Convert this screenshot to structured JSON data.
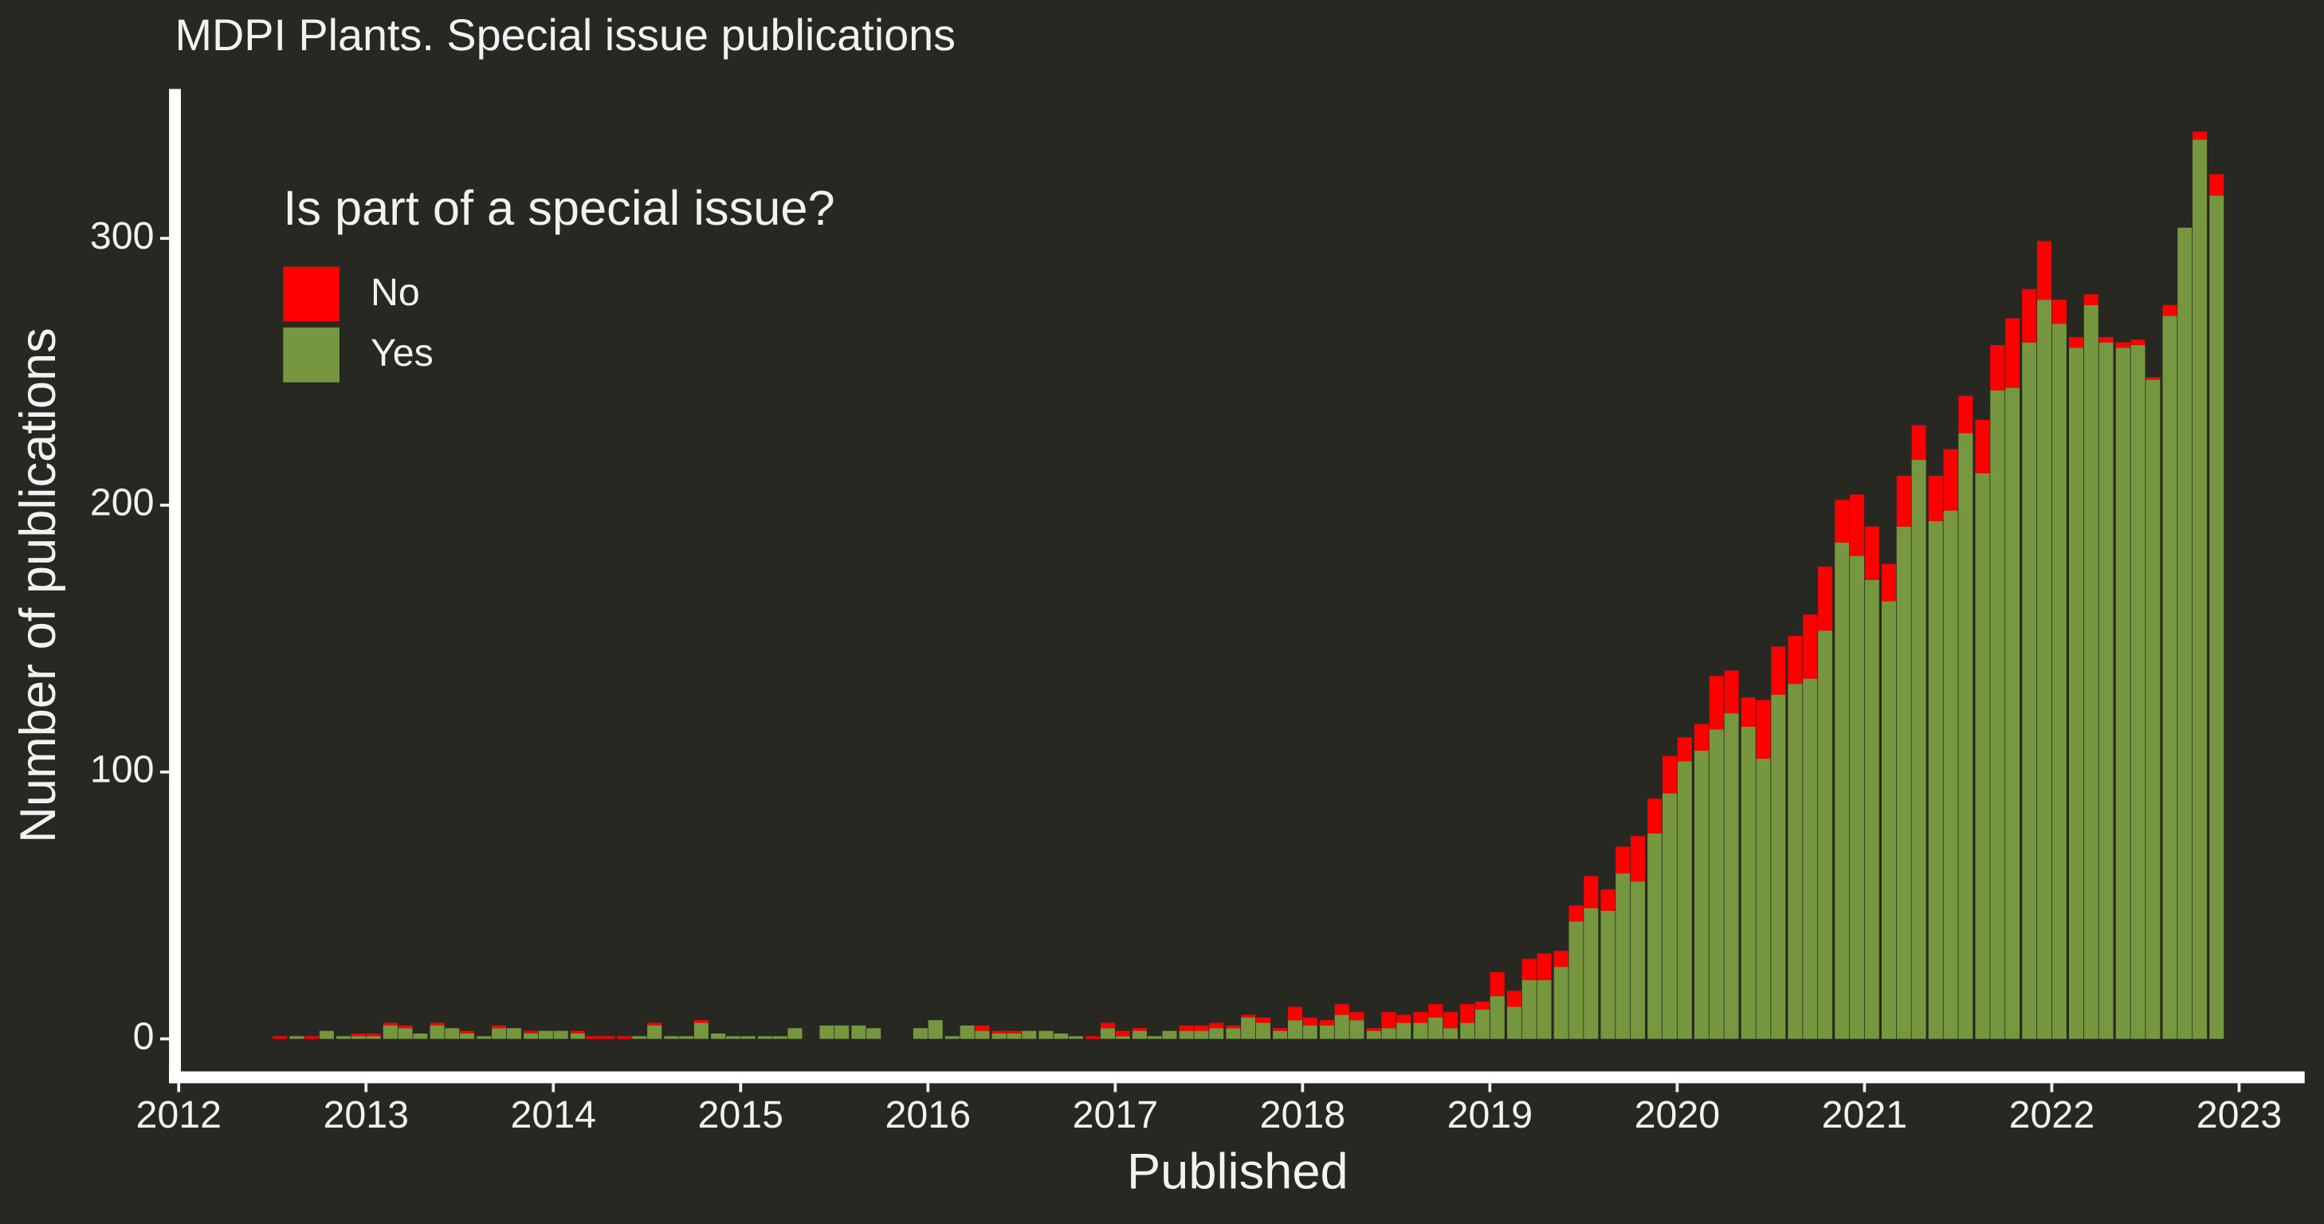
{
  "chart_data": {
    "type": "bar",
    "stacked": true,
    "title": "MDPI Plants. Special issue publications",
    "x_label": "Published",
    "y_label": "Number of publications",
    "legend_title": "Is part of a special issue?",
    "legend": "top-left",
    "x": [
      2012.54,
      2012.63,
      2012.71,
      2012.79,
      2012.88,
      2012.96,
      2013.04,
      2013.13,
      2013.21,
      2013.29,
      2013.38,
      2013.46,
      2013.54,
      2013.63,
      2013.71,
      2013.79,
      2013.88,
      2013.96,
      2014.04,
      2014.13,
      2014.21,
      2014.29,
      2014.38,
      2014.46,
      2014.54,
      2014.63,
      2014.71,
      2014.79,
      2014.88,
      2014.96,
      2015.04,
      2015.13,
      2015.21,
      2015.29,
      2015.38,
      2015.46,
      2015.54,
      2015.63,
      2015.71,
      2015.79,
      2015.88,
      2015.96,
      2016.04,
      2016.13,
      2016.21,
      2016.29,
      2016.38,
      2016.46,
      2016.54,
      2016.63,
      2016.71,
      2016.79,
      2016.88,
      2016.96,
      2017.04,
      2017.13,
      2017.21,
      2017.29,
      2017.38,
      2017.46,
      2017.54,
      2017.63,
      2017.71,
      2017.79,
      2017.88,
      2017.96,
      2018.04,
      2018.13,
      2018.21,
      2018.29,
      2018.38,
      2018.46,
      2018.54,
      2018.63,
      2018.71,
      2018.79,
      2018.88,
      2018.96,
      2019.04,
      2019.13,
      2019.21,
      2019.29,
      2019.38,
      2019.46,
      2019.54,
      2019.63,
      2019.71,
      2019.79,
      2019.88,
      2019.96,
      2020.04,
      2020.13,
      2020.21,
      2020.29,
      2020.38,
      2020.46,
      2020.54,
      2020.63,
      2020.71,
      2020.79,
      2020.88,
      2020.96,
      2021.04,
      2021.13,
      2021.21,
      2021.29,
      2021.38,
      2021.46,
      2021.54,
      2021.63,
      2021.71,
      2021.79,
      2021.88,
      2021.96,
      2022.04,
      2022.13,
      2022.21,
      2022.29,
      2022.38,
      2022.46,
      2022.54,
      2022.63,
      2022.71,
      2022.79,
      2022.88
    ],
    "series": [
      {
        "name": "No",
        "color": "#ff0000",
        "values": [
          1,
          0,
          1,
          0,
          0,
          1,
          1,
          1,
          1,
          0,
          1,
          0,
          1,
          0,
          1,
          0,
          1,
          0,
          0,
          1,
          1,
          1,
          1,
          0,
          1,
          0,
          0,
          1,
          0,
          0,
          0,
          0,
          0,
          0,
          0,
          0,
          0,
          0,
          0,
          0,
          0,
          0,
          0,
          0,
          0,
          2,
          1,
          1,
          0,
          0,
          0,
          0,
          1,
          2,
          2,
          1,
          0,
          0,
          2,
          2,
          2,
          1,
          1,
          2,
          1,
          5,
          3,
          2,
          4,
          3,
          1,
          6,
          3,
          4,
          5,
          6,
          7,
          3,
          9,
          6,
          8,
          10,
          6,
          6,
          12,
          8,
          10,
          17,
          13,
          14,
          9,
          10,
          20,
          16,
          11,
          22,
          18,
          18,
          24,
          24,
          16,
          23,
          20,
          14,
          19,
          13,
          17,
          23,
          14,
          20,
          17,
          26,
          20,
          22,
          9,
          4,
          4,
          2,
          2,
          2,
          1,
          4,
          0,
          3,
          8
        ]
      },
      {
        "name": "Yes",
        "color": "#76963f",
        "values": [
          0,
          1,
          0,
          3,
          1,
          1,
          1,
          5,
          4,
          2,
          5,
          4,
          2,
          1,
          4,
          4,
          2,
          3,
          3,
          2,
          0,
          0,
          0,
          1,
          5,
          1,
          1,
          6,
          2,
          1,
          1,
          1,
          1,
          4,
          0,
          5,
          5,
          5,
          4,
          0,
          0,
          4,
          7,
          1,
          5,
          3,
          2,
          2,
          3,
          3,
          2,
          1,
          0,
          4,
          1,
          3,
          1,
          3,
          3,
          3,
          4,
          4,
          8,
          6,
          3,
          7,
          5,
          5,
          9,
          7,
          3,
          4,
          6,
          6,
          8,
          4,
          6,
          11,
          16,
          12,
          22,
          22,
          27,
          44,
          49,
          48,
          62,
          59,
          77,
          92,
          104,
          108,
          116,
          122,
          117,
          105,
          129,
          133,
          135,
          153,
          186,
          181,
          172,
          164,
          192,
          217,
          194,
          198,
          227,
          212,
          243,
          244,
          261,
          277,
          268,
          259,
          275,
          261,
          259,
          260,
          247,
          271,
          304,
          337,
          316
        ]
      }
    ],
    "xlim": [
      2011.98,
      2023.35
    ],
    "xticks": [
      2012,
      2013,
      2014,
      2015,
      2016,
      2017,
      2018,
      2019,
      2020,
      2021,
      2022,
      2023
    ],
    "ylim": [
      -14.4,
      356
    ],
    "yticks": [
      0,
      100,
      200,
      300
    ],
    "grid": false
  }
}
